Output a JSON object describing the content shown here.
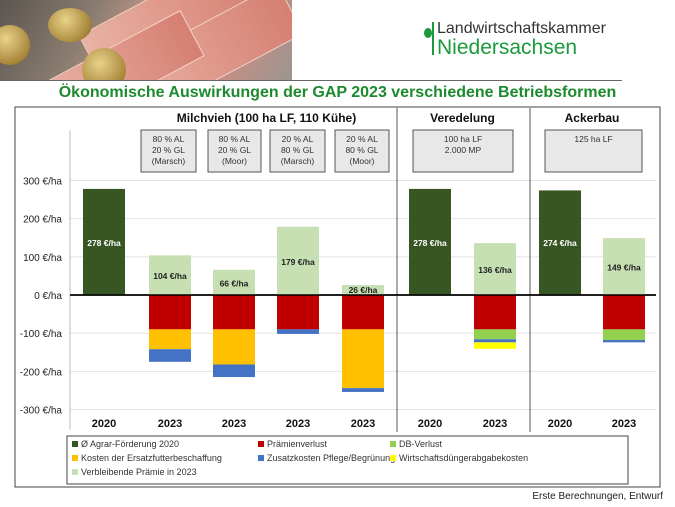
{
  "header": {
    "logo_line1": "Landwirtschaftskammer",
    "logo_line2": "Niedersachsen",
    "title": "Ökonomische Auswirkungen der GAP 2023 verschiedene Betriebsformen"
  },
  "footnote": "Erste Berechnungen, Entwurf",
  "colors": {
    "title_green": "#1d8a2e",
    "Ø Agrar-Förderung 2020": "#375623",
    "Prämienverlust": "#c00000",
    "DB-Verlust": "#92d050",
    "Kosten der Ersatzfutterbeschaffung": "#ffc000",
    "Zusatzkosten Pflege/Begrünung": "#4472c4",
    "Wirtschaftsdüngerabgabekosten": "#ffff00",
    "Verbleibende Prämie in 2023": "#c6e0b4"
  },
  "chart_data": {
    "type": "bar",
    "stacked": true,
    "ylim": [
      -300,
      300
    ],
    "yticks": [
      300,
      200,
      100,
      0,
      -100,
      -200,
      -300
    ],
    "ytick_labels": [
      "300 €/ha",
      "200 €/ha",
      "100 €/ha",
      "0 €/ha",
      "-100 €/ha",
      "-200 €/ha",
      "-300 €/ha"
    ],
    "grid": true,
    "legend_position": "bottom",
    "groups": [
      {
        "title": "Milchvieh (100 ha LF, 110 Kühe)",
        "boxes": [
          [
            "80 % AL",
            "20 % GL",
            "(Marsch)"
          ],
          [
            "80 % AL",
            "20 % GL",
            "(Moor)"
          ],
          [
            "20 % AL",
            "80 % GL",
            "(Marsch)"
          ],
          [
            "20 % AL",
            "80 % GL",
            "(Moor)"
          ]
        ]
      },
      {
        "title": "Veredelung",
        "boxes": [
          [
            "100 ha LF",
            "2.000 MP"
          ]
        ]
      },
      {
        "title": "Ackerbau",
        "boxes": [
          [
            "125 ha LF"
          ]
        ]
      }
    ],
    "categories": [
      "2020",
      "2023",
      "2023",
      "2023",
      "2023",
      "2020",
      "2023",
      "2020",
      "2023"
    ],
    "category_group": [
      0,
      0,
      0,
      0,
      0,
      1,
      1,
      2,
      2
    ],
    "data_labels": [
      "278 €/ha",
      "104 €/ha",
      "66 €/ha",
      "179 €/ha",
      "26 €/ha",
      "278 €/ha",
      "136 €/ha",
      "274 €/ha",
      "149 €/ha"
    ],
    "series": [
      {
        "name": "Ø Agrar-Förderung 2020",
        "values": [
          278,
          0,
          0,
          0,
          0,
          278,
          0,
          274,
          0
        ]
      },
      {
        "name": "Prämienverlust",
        "values": [
          0,
          -90,
          -90,
          -90,
          -90,
          0,
          -90,
          0,
          -90
        ]
      },
      {
        "name": "DB-Verlust",
        "values": [
          0,
          0,
          0,
          0,
          0,
          0,
          -26,
          0,
          -28
        ]
      },
      {
        "name": "Kosten der Ersatzfutterbeschaffung",
        "values": [
          0,
          -52,
          -92,
          0,
          -154,
          0,
          0,
          0,
          0
        ]
      },
      {
        "name": "Zusatzkosten Pflege/Begrünung",
        "values": [
          0,
          -33,
          -33,
          -12,
          -10,
          0,
          -8,
          0,
          -6
        ]
      },
      {
        "name": "Wirtschaftsdüngerabgabekosten",
        "values": [
          0,
          0,
          0,
          0,
          0,
          0,
          -17,
          0,
          0
        ]
      },
      {
        "name": "Verbleibende Prämie in 2023",
        "values": [
          0,
          104,
          66,
          179,
          26,
          0,
          136,
          0,
          149
        ]
      }
    ]
  }
}
